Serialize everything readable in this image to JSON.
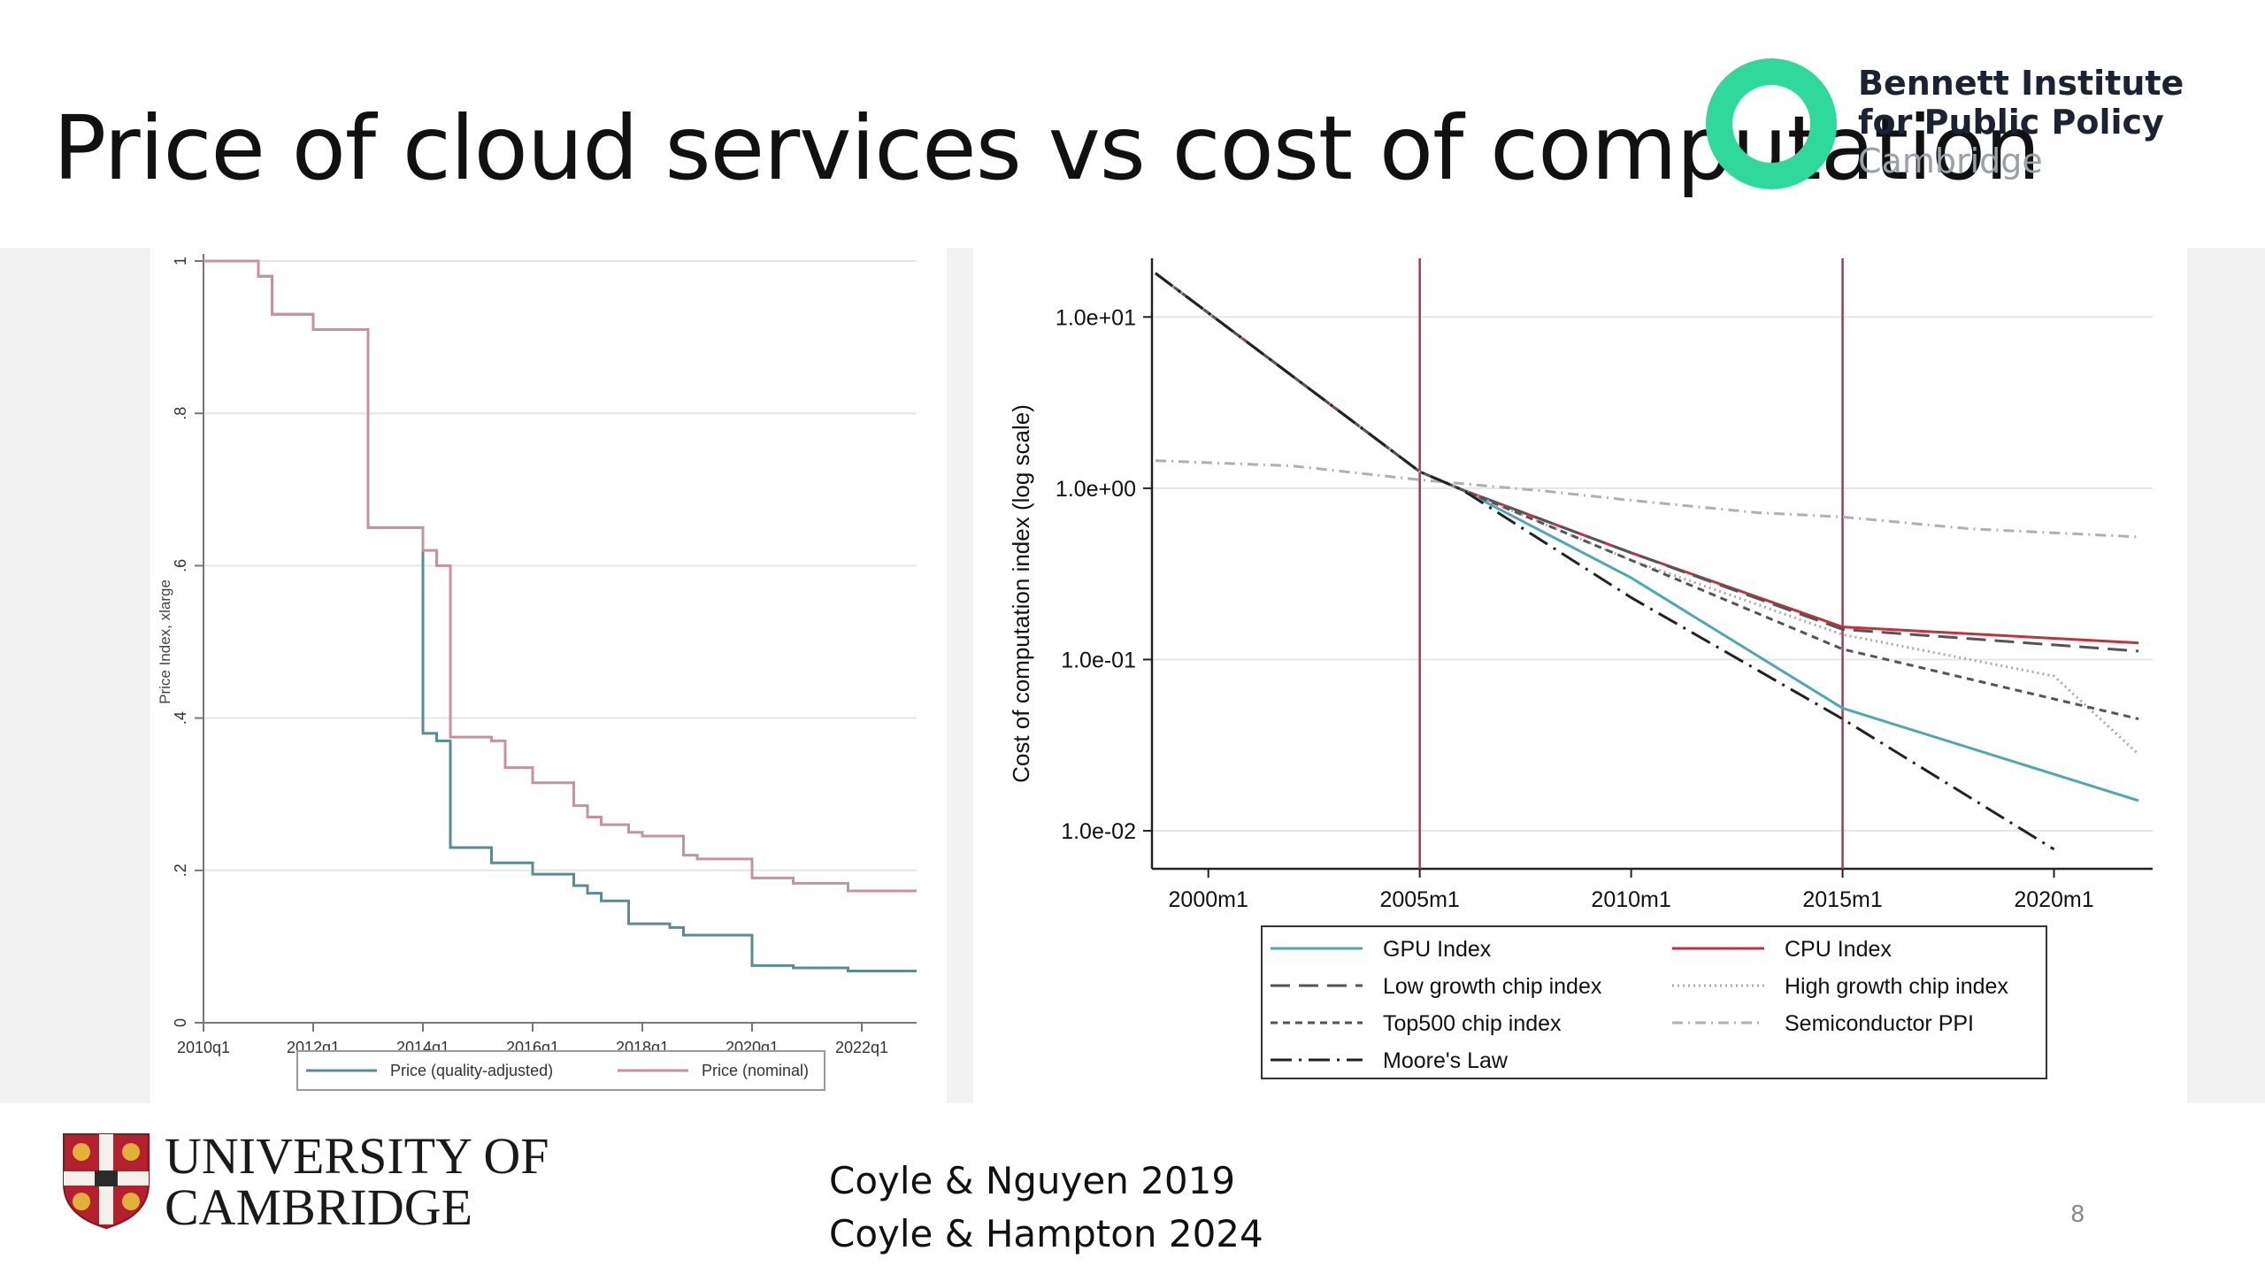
{
  "slide": {
    "title": "Price of cloud services vs cost of computation",
    "page_number": "8",
    "references": [
      "Coyle & Nguyen 2019",
      "Coyle & Hampton 2024"
    ],
    "logos": {
      "bennett": [
        "Bennett Institute",
        "for Public Policy",
        "Cambridge"
      ],
      "cambridge": [
        "UNIVERSITY OF",
        "CAMBRIDGE"
      ],
      "bennett_ring_color": "#2fd89b",
      "cambridge_shield_color": "#b5202e"
    }
  },
  "chart_data": [
    {
      "type": "line",
      "ylabel": "Price Index, xlarge",
      "xlabel": "",
      "ylim": [
        0,
        1
      ],
      "xlim": [
        2010.0,
        2023.0
      ],
      "x_ticks": [
        2010,
        2012,
        2014,
        2016,
        2018,
        2020,
        2022
      ],
      "x_tick_labels": [
        "2010q1",
        "2012q1",
        "2014q1",
        "2016q1",
        "2018q1",
        "2020q1",
        "2022q1"
      ],
      "y_ticks": [
        0,
        0.2,
        0.4,
        0.6,
        0.8,
        1
      ],
      "y_tick_labels": [
        "0",
        ".2",
        ".4",
        ".6",
        ".8",
        "1"
      ],
      "grid": true,
      "legend_position": "bottom",
      "series": [
        {
          "name": "Price (quality-adjusted)",
          "color": "#5a8c96",
          "x": [
            2010.0,
            2010.75,
            2011.0,
            2011.25,
            2011.5,
            2011.75,
            2012.0,
            2012.25,
            2012.5,
            2012.75,
            2013.0,
            2013.25,
            2013.5,
            2013.75,
            2014.0,
            2014.25,
            2014.5,
            2014.75,
            2015.0,
            2015.25,
            2015.5,
            2015.75,
            2016.0,
            2016.25,
            2016.5,
            2016.75,
            2017.0,
            2017.25,
            2017.5,
            2017.75,
            2018.0,
            2018.25,
            2018.5,
            2018.75,
            2019.0,
            2019.25,
            2019.5,
            2019.75,
            2020.0,
            2020.25,
            2020.5,
            2020.75,
            2021.0,
            2021.25,
            2021.5,
            2021.75,
            2022.0,
            2022.25,
            2022.5,
            2022.75
          ],
          "y": [
            1.0,
            1.0,
            0.98,
            0.93,
            0.93,
            0.93,
            0.91,
            0.91,
            0.91,
            0.91,
            0.65,
            0.65,
            0.65,
            0.65,
            0.38,
            0.37,
            0.23,
            0.23,
            0.23,
            0.21,
            0.21,
            0.21,
            0.195,
            0.195,
            0.195,
            0.18,
            0.17,
            0.16,
            0.16,
            0.13,
            0.13,
            0.13,
            0.125,
            0.115,
            0.115,
            0.115,
            0.115,
            0.115,
            0.075,
            0.075,
            0.075,
            0.072,
            0.072,
            0.072,
            0.072,
            0.068,
            0.068,
            0.068,
            0.068,
            0.068
          ]
        },
        {
          "name": "Price (nominal)",
          "color": "#c4949e",
          "x": [
            2010.0,
            2010.75,
            2011.0,
            2011.25,
            2011.5,
            2011.75,
            2012.0,
            2012.25,
            2012.5,
            2012.75,
            2013.0,
            2013.25,
            2013.5,
            2013.75,
            2014.0,
            2014.25,
            2014.5,
            2014.75,
            2015.0,
            2015.25,
            2015.5,
            2015.75,
            2016.0,
            2016.25,
            2016.5,
            2016.75,
            2017.0,
            2017.25,
            2017.5,
            2017.75,
            2018.0,
            2018.25,
            2018.5,
            2018.75,
            2019.0,
            2019.25,
            2019.5,
            2019.75,
            2020.0,
            2020.25,
            2020.5,
            2020.75,
            2021.0,
            2021.25,
            2021.5,
            2021.75,
            2022.0,
            2022.25,
            2022.5,
            2022.75
          ],
          "y": [
            1.0,
            1.0,
            0.98,
            0.93,
            0.93,
            0.93,
            0.91,
            0.91,
            0.91,
            0.91,
            0.65,
            0.65,
            0.65,
            0.65,
            0.62,
            0.6,
            0.375,
            0.375,
            0.375,
            0.37,
            0.335,
            0.335,
            0.315,
            0.315,
            0.315,
            0.285,
            0.27,
            0.26,
            0.26,
            0.25,
            0.245,
            0.245,
            0.245,
            0.22,
            0.215,
            0.215,
            0.215,
            0.215,
            0.19,
            0.19,
            0.19,
            0.183,
            0.183,
            0.183,
            0.183,
            0.173,
            0.173,
            0.173,
            0.173,
            0.173
          ]
        }
      ]
    },
    {
      "type": "line",
      "ylabel": "Cost of computation index (log scale)",
      "xlabel": "",
      "y_scale": "log",
      "ylim": [
        0.006,
        20
      ],
      "xlim": [
        1998.667,
        2022.333
      ],
      "x_ticks": [
        2000,
        2005,
        2010,
        2015,
        2020
      ],
      "x_tick_labels": [
        "2000m1",
        "2005m1",
        "2010m1",
        "2015m1",
        "2020m1"
      ],
      "y_ticks": [
        10,
        1,
        0.1,
        0.01
      ],
      "y_tick_labels": [
        "1.0e+01",
        "1.0e+00",
        "1.0e-01",
        "1.0e-02"
      ],
      "grid": true,
      "vertical_lines": [
        2005,
        2015
      ],
      "vertical_line_color": "#b0325a",
      "legend_position": "bottom",
      "series": [
        {
          "name": "GPU Index",
          "color": "#4fa8b0",
          "dash": "solid",
          "x": [
            1998.75,
            2005,
            2006,
            2010,
            2015,
            2022
          ],
          "y": [
            18,
            1.25,
            0.98,
            0.3,
            0.052,
            0.015
          ]
        },
        {
          "name": "CPU Index",
          "color": "#c2313f",
          "dash": "solid",
          "x": [
            1998.75,
            2005,
            2006,
            2010,
            2015,
            2022
          ],
          "y": [
            18,
            1.25,
            0.98,
            0.42,
            0.155,
            0.125
          ]
        },
        {
          "name": "Low growth chip index",
          "color": "#555555",
          "dash": "long-dash",
          "x": [
            1998.75,
            2005,
            2006,
            2010,
            2015,
            2022
          ],
          "y": [
            18,
            1.25,
            0.98,
            0.42,
            0.15,
            0.112
          ]
        },
        {
          "name": "High growth chip index",
          "color": "#aaaaaa",
          "dash": "dotted",
          "x": [
            1998.75,
            2005,
            2006,
            2010,
            2015,
            2020,
            2022
          ],
          "y": [
            18,
            1.25,
            0.98,
            0.38,
            0.14,
            0.08,
            0.028
          ]
        },
        {
          "name": "Top500 chip index",
          "color": "#555555",
          "dash": "short-dash",
          "x": [
            1998.75,
            2005,
            2006,
            2010,
            2015,
            2022
          ],
          "y": [
            18,
            1.25,
            0.98,
            0.38,
            0.115,
            0.045
          ]
        },
        {
          "name": "Semiconductor PPI",
          "color": "#b0b0b0",
          "dash": "dash-dot",
          "x": [
            1998.75,
            2002,
            2005,
            2008,
            2010,
            2013,
            2015,
            2018,
            2022
          ],
          "y": [
            1.45,
            1.35,
            1.12,
            0.96,
            0.85,
            0.72,
            0.68,
            0.58,
            0.52
          ]
        },
        {
          "name": "Moore's Law",
          "color": "#222222",
          "dash": "long-dash-dot",
          "x": [
            1998.75,
            2005,
            2006,
            2010,
            2015,
            2020
          ],
          "y": [
            18,
            1.25,
            0.98,
            0.23,
            0.045,
            0.0078
          ]
        }
      ]
    }
  ]
}
